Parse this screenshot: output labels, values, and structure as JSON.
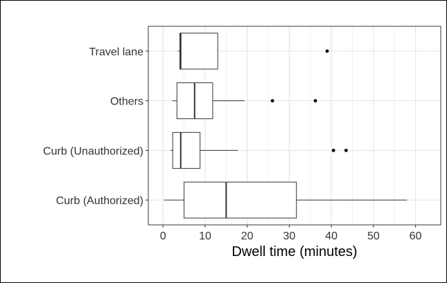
{
  "chart_data": {
    "type": "boxplot",
    "orientation": "horizontal",
    "title": "",
    "xlabel": "Dwell time (minutes)",
    "ylabel": "",
    "xlim": [
      -3.5,
      66
    ],
    "x_ticks": [
      0,
      10,
      20,
      30,
      40,
      50,
      60
    ],
    "grid": true,
    "theme": "bw",
    "categories": [
      "Travel lane",
      "Others",
      "Curb (Unauthorized)",
      "Curb (Authorized)"
    ],
    "boxes": [
      {
        "category": "Travel lane",
        "whisker_low": 3.5,
        "q1": 4.0,
        "median": 4.2,
        "q3": 13.0,
        "whisker_high": 13.0,
        "outliers": [
          39.0
        ]
      },
      {
        "category": "Others",
        "whisker_low": 2.2,
        "q1": 3.3,
        "median": 7.5,
        "q3": 11.8,
        "whisker_high": 19.4,
        "outliers": [
          26.0,
          36.2
        ]
      },
      {
        "category": "Curb (Unauthorized)",
        "whisker_low": 1.8,
        "q1": 2.3,
        "median": 4.2,
        "q3": 8.8,
        "whisker_high": 17.8,
        "outliers": [
          40.5,
          43.5
        ]
      },
      {
        "category": "Curb (Authorized)",
        "whisker_low": 0.3,
        "q1": 5.0,
        "median": 15.0,
        "q3": 31.7,
        "whisker_high": 58.0,
        "outliers": []
      }
    ]
  }
}
